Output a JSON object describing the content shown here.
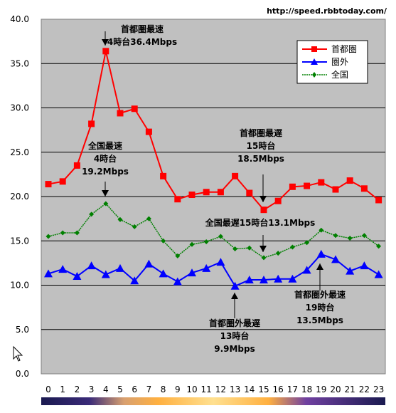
{
  "source_url": "http://speed.rbbtoday.com/",
  "colors": {
    "plot_bg": "#c0c0c0",
    "metro": "#ff0000",
    "outside": "#0000ff",
    "national": "#008000"
  },
  "chart_data": {
    "type": "line",
    "x": [
      0,
      1,
      2,
      3,
      4,
      5,
      6,
      7,
      8,
      9,
      10,
      11,
      12,
      13,
      14,
      15,
      16,
      17,
      18,
      19,
      20,
      21,
      22,
      23
    ],
    "x_tick_labels": [
      "0",
      "1",
      "2",
      "3",
      "4",
      "5",
      "6",
      "7",
      "8",
      "9",
      "10",
      "11",
      "12",
      "13",
      "14",
      "15",
      "16",
      "17",
      "18",
      "19",
      "20",
      "21",
      "22",
      "23"
    ],
    "ylim": [
      0,
      40
    ],
    "y_tick_labels": [
      "0.0",
      "5.0",
      "10.0",
      "15.0",
      "20.0",
      "25.0",
      "30.0",
      "35.0",
      "40.0"
    ],
    "grid": true,
    "legend_position": "top-right",
    "series": [
      {
        "name": "首都圏",
        "color": "#ff0000",
        "marker": "square",
        "values": [
          21.4,
          21.7,
          23.5,
          28.2,
          36.4,
          29.4,
          29.9,
          27.3,
          22.3,
          19.7,
          20.2,
          20.5,
          20.5,
          22.3,
          20.4,
          18.5,
          19.5,
          21.1,
          21.2,
          21.6,
          20.8,
          21.8,
          20.9,
          19.6
        ]
      },
      {
        "name": "圏外",
        "color": "#0000ff",
        "marker": "triangle",
        "values": [
          11.3,
          11.8,
          11.0,
          12.2,
          11.2,
          11.9,
          10.5,
          12.4,
          11.3,
          10.4,
          11.4,
          11.9,
          12.6,
          9.9,
          10.6,
          10.6,
          10.7,
          10.7,
          11.7,
          13.5,
          12.9,
          11.6,
          12.2,
          11.2
        ]
      },
      {
        "name": "全国",
        "color": "#008000",
        "marker": "diamond",
        "values": [
          15.5,
          15.9,
          15.9,
          18.0,
          19.2,
          17.4,
          16.6,
          17.5,
          15.0,
          13.3,
          14.6,
          14.9,
          15.5,
          14.1,
          14.2,
          13.1,
          13.6,
          14.3,
          14.8,
          16.2,
          15.6,
          15.3,
          15.6,
          14.4
        ]
      }
    ],
    "annotations": [
      {
        "lines": [
          "首都圏最速",
          "4時台36.4Mbps"
        ],
        "x": 4,
        "y": 36.4
      },
      {
        "lines": [
          "全国最速",
          "4時台",
          "19.2Mbps"
        ],
        "x": 4,
        "y": 19.2
      },
      {
        "lines": [
          "首都圏最遅",
          "15時台",
          "18.5Mbps"
        ],
        "x": 15,
        "y": 18.5
      },
      {
        "lines": [
          "全国最遅15時台13.1Mbps"
        ],
        "x": 15,
        "y": 13.1
      },
      {
        "lines": [
          "首都圏外最遅",
          "13時台",
          "9.9Mbps"
        ],
        "x": 13,
        "y": 9.9
      },
      {
        "lines": [
          "首都圏外最速",
          "19時台",
          "13.5Mbps"
        ],
        "x": 19,
        "y": 13.5
      }
    ]
  }
}
